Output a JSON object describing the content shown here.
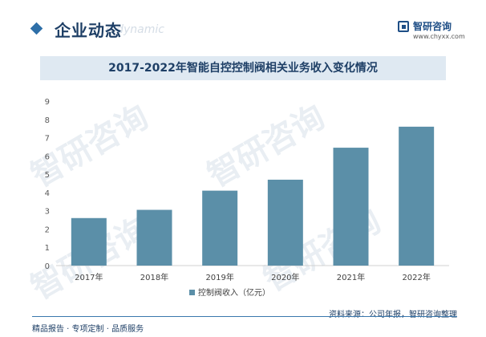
{
  "header": {
    "section_title": "企业动态",
    "section_sub": "e dynamic",
    "logo_name": "智研咨询",
    "logo_url": "www.chyxx.com"
  },
  "watermark": "智研咨询",
  "colors": {
    "bar": "#5b8fa8",
    "accent": "#2e6fa8",
    "title_bg": "#dfe9f2"
  },
  "chart_data": {
    "type": "bar",
    "title": "2017-2022年智能自控控制阀相关业务收入变化情况",
    "categories": [
      "2017年",
      "2018年",
      "2019年",
      "2020年",
      "2021年",
      "2022年"
    ],
    "series": [
      {
        "name": "控制阀收入（亿元）",
        "values": [
          2.6,
          3.05,
          4.1,
          4.7,
          6.45,
          7.6
        ]
      }
    ],
    "yticks": [
      0,
      1,
      2,
      3,
      4,
      5,
      6,
      7,
      8,
      9
    ],
    "ylim": [
      0,
      9
    ],
    "grid": false,
    "legend": "bottom"
  },
  "footer": {
    "left": "精品报告 · 专项定制 · 品质服务",
    "source": "资料来源：公司年报，智研咨询整理"
  }
}
